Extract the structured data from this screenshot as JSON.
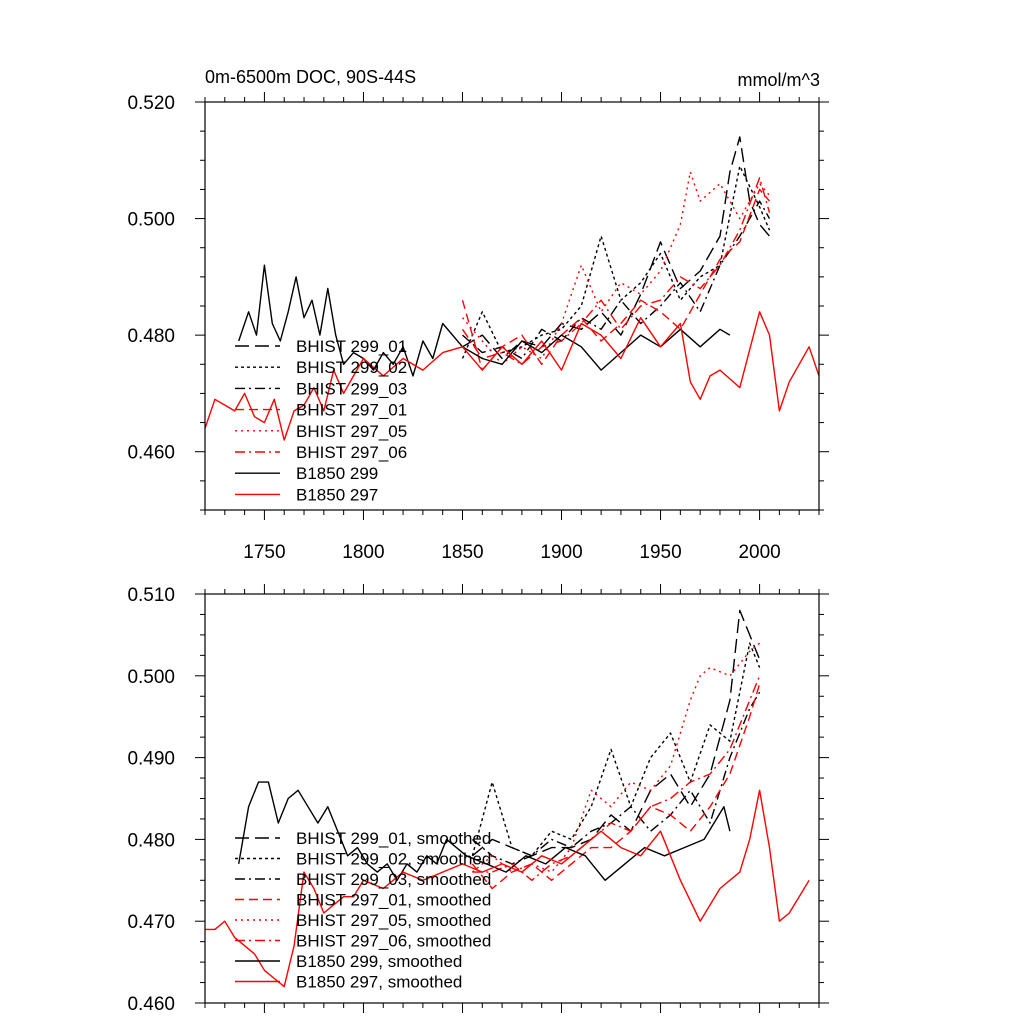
{
  "chart_data": [
    {
      "type": "line",
      "title": "0m-6500m DOC, 90S-44S",
      "units": "mmol/m^3",
      "xlim": [
        1720,
        2030
      ],
      "ylim": [
        0.45,
        0.52
      ],
      "xticks": [
        1750,
        1800,
        1850,
        1900,
        1950,
        2000
      ],
      "xtick_labels": [
        "1750",
        "1800",
        "1850",
        "1900",
        "1950",
        "2000"
      ],
      "yticks": [
        0.46,
        0.48,
        0.5,
        0.52
      ],
      "ytick_labels": [
        "0.460",
        "0.480",
        "0.500",
        "0.520"
      ],
      "grid": false,
      "legend_position": "left-middle",
      "series": [
        {
          "name": "BHIST 299_01",
          "color": "#000000",
          "dash": "long-dash",
          "x": [
            1850,
            1860,
            1870,
            1880,
            1890,
            1900,
            1910,
            1920,
            1930,
            1940,
            1950,
            1960,
            1970,
            1980,
            1985,
            1990,
            1995,
            2000,
            2005
          ],
          "y": [
            0.478,
            0.48,
            0.476,
            0.479,
            0.478,
            0.482,
            0.481,
            0.484,
            0.48,
            0.487,
            0.496,
            0.488,
            0.491,
            0.497,
            0.508,
            0.514,
            0.503,
            0.499,
            0.497
          ]
        },
        {
          "name": "BHIST 299_02",
          "color": "#000000",
          "dash": "dot",
          "x": [
            1850,
            1860,
            1870,
            1880,
            1890,
            1900,
            1910,
            1920,
            1930,
            1940,
            1950,
            1960,
            1970,
            1980,
            1990,
            2000,
            2005
          ],
          "y": [
            0.476,
            0.484,
            0.477,
            0.478,
            0.48,
            0.481,
            0.485,
            0.497,
            0.486,
            0.489,
            0.494,
            0.486,
            0.49,
            0.492,
            0.509,
            0.502,
            0.498
          ]
        },
        {
          "name": "BHIST 299_03",
          "color": "#000000",
          "dash": "dash-dot",
          "x": [
            1850,
            1860,
            1870,
            1880,
            1890,
            1900,
            1910,
            1920,
            1930,
            1940,
            1950,
            1960,
            1970,
            1980,
            1990,
            2000,
            2005
          ],
          "y": [
            0.48,
            0.477,
            0.478,
            0.476,
            0.481,
            0.479,
            0.483,
            0.481,
            0.486,
            0.482,
            0.485,
            0.489,
            0.484,
            0.492,
            0.497,
            0.503,
            0.5
          ]
        },
        {
          "name": "BHIST 297_01",
          "color": "#ff0000",
          "dash": "dash",
          "x": [
            1850,
            1860,
            1870,
            1880,
            1890,
            1900,
            1910,
            1920,
            1930,
            1940,
            1950,
            1960,
            1970,
            1980,
            1990,
            2000,
            2005
          ],
          "y": [
            0.486,
            0.474,
            0.478,
            0.48,
            0.475,
            0.48,
            0.483,
            0.479,
            0.482,
            0.486,
            0.484,
            0.481,
            0.487,
            0.493,
            0.496,
            0.505,
            0.503
          ]
        },
        {
          "name": "BHIST 297_05",
          "color": "#ff0000",
          "dash": "short-dot",
          "x": [
            1850,
            1860,
            1870,
            1880,
            1890,
            1900,
            1910,
            1920,
            1930,
            1940,
            1950,
            1960,
            1965,
            1970,
            1980,
            1990,
            2000,
            2005
          ],
          "y": [
            0.483,
            0.479,
            0.475,
            0.478,
            0.476,
            0.482,
            0.492,
            0.484,
            0.489,
            0.487,
            0.491,
            0.499,
            0.508,
            0.503,
            0.506,
            0.5,
            0.506,
            0.504
          ]
        },
        {
          "name": "BHIST 297_06",
          "color": "#ff0000",
          "dash": "dash-dot",
          "x": [
            1850,
            1860,
            1870,
            1880,
            1890,
            1900,
            1910,
            1920,
            1930,
            1940,
            1950,
            1960,
            1970,
            1980,
            1990,
            2000,
            2005
          ],
          "y": [
            0.481,
            0.476,
            0.477,
            0.475,
            0.478,
            0.479,
            0.482,
            0.486,
            0.481,
            0.485,
            0.486,
            0.49,
            0.488,
            0.492,
            0.498,
            0.507,
            0.501
          ]
        },
        {
          "name": "B1850 299",
          "color": "#000000",
          "dash": "solid",
          "x": [
            1737,
            1742,
            1746,
            1750,
            1754,
            1758,
            1762,
            1766,
            1770,
            1774,
            1778,
            1782,
            1786,
            1790,
            1795,
            1800,
            1805,
            1810,
            1815,
            1820,
            1825,
            1830,
            1835,
            1840,
            1850,
            1860,
            1870,
            1880,
            1890,
            1900,
            1910,
            1920,
            1930,
            1940,
            1950,
            1960,
            1970,
            1980,
            1985
          ],
          "y": [
            0.479,
            0.484,
            0.48,
            0.492,
            0.482,
            0.479,
            0.484,
            0.49,
            0.483,
            0.486,
            0.48,
            0.488,
            0.48,
            0.475,
            0.477,
            0.476,
            0.474,
            0.477,
            0.475,
            0.478,
            0.473,
            0.479,
            0.476,
            0.482,
            0.478,
            0.476,
            0.475,
            0.479,
            0.477,
            0.48,
            0.478,
            0.474,
            0.477,
            0.48,
            0.478,
            0.481,
            0.478,
            0.481,
            0.48
          ]
        },
        {
          "name": "B1850 297",
          "color": "#ff0000",
          "dash": "solid",
          "x": [
            1720,
            1725,
            1730,
            1735,
            1740,
            1745,
            1750,
            1755,
            1760,
            1765,
            1770,
            1775,
            1780,
            1785,
            1790,
            1795,
            1800,
            1810,
            1820,
            1830,
            1840,
            1850,
            1860,
            1870,
            1880,
            1890,
            1900,
            1910,
            1920,
            1930,
            1940,
            1950,
            1960,
            1965,
            1970,
            1975,
            1980,
            1990,
            2000,
            2005,
            2010,
            2015,
            2020,
            2025,
            2030
          ],
          "y": [
            0.464,
            0.469,
            0.468,
            0.467,
            0.47,
            0.466,
            0.465,
            0.469,
            0.462,
            0.467,
            0.468,
            0.471,
            0.467,
            0.474,
            0.47,
            0.473,
            0.476,
            0.473,
            0.476,
            0.474,
            0.477,
            0.478,
            0.474,
            0.478,
            0.475,
            0.479,
            0.474,
            0.482,
            0.48,
            0.476,
            0.483,
            0.478,
            0.482,
            0.472,
            0.469,
            0.473,
            0.474,
            0.471,
            0.484,
            0.48,
            0.467,
            0.472,
            0.475,
            0.478,
            0.473
          ]
        }
      ]
    },
    {
      "type": "line",
      "title": "",
      "units": "",
      "xlim": [
        1720,
        2030
      ],
      "ylim": [
        0.46,
        0.51
      ],
      "xticks": [
        1750,
        1800,
        1850,
        1900,
        1950,
        2000
      ],
      "xtick_labels": [],
      "yticks": [
        0.46,
        0.47,
        0.48,
        0.49,
        0.5,
        0.51
      ],
      "ytick_labels": [
        "0.460",
        "0.470",
        "0.480",
        "0.490",
        "0.500",
        "0.510"
      ],
      "grid": false,
      "legend_position": "bottom-left",
      "series": [
        {
          "name": "BHIST 299_01, smoothed",
          "color": "#000000",
          "dash": "long-dash",
          "x": [
            1855,
            1865,
            1875,
            1885,
            1895,
            1905,
            1915,
            1925,
            1935,
            1945,
            1955,
            1965,
            1975,
            1985,
            1990,
            1995,
            2000
          ],
          "y": [
            0.478,
            0.48,
            0.479,
            0.478,
            0.479,
            0.479,
            0.48,
            0.483,
            0.481,
            0.486,
            0.488,
            0.484,
            0.488,
            0.497,
            0.508,
            0.505,
            0.502
          ]
        },
        {
          "name": "BHIST 299_02, smoothed",
          "color": "#000000",
          "dash": "dot",
          "x": [
            1855,
            1865,
            1875,
            1885,
            1895,
            1905,
            1915,
            1925,
            1935,
            1945,
            1955,
            1965,
            1975,
            1985,
            1995,
            2000
          ],
          "y": [
            0.478,
            0.487,
            0.479,
            0.478,
            0.481,
            0.48,
            0.484,
            0.491,
            0.484,
            0.49,
            0.493,
            0.487,
            0.494,
            0.492,
            0.504,
            0.501
          ]
        },
        {
          "name": "BHIST 299_03, smoothed",
          "color": "#000000",
          "dash": "dash-dot",
          "x": [
            1855,
            1865,
            1875,
            1885,
            1895,
            1905,
            1915,
            1925,
            1935,
            1945,
            1955,
            1965,
            1975,
            1985,
            1995,
            2000
          ],
          "y": [
            0.48,
            0.478,
            0.477,
            0.478,
            0.48,
            0.479,
            0.481,
            0.482,
            0.484,
            0.481,
            0.483,
            0.486,
            0.482,
            0.49,
            0.496,
            0.498
          ]
        },
        {
          "name": "BHIST 297_01, smoothed",
          "color": "#ff0000",
          "dash": "dash",
          "x": [
            1855,
            1865,
            1875,
            1885,
            1895,
            1905,
            1915,
            1925,
            1935,
            1945,
            1955,
            1965,
            1975,
            1985,
            1995,
            2000
          ],
          "y": [
            0.477,
            0.474,
            0.476,
            0.477,
            0.475,
            0.477,
            0.479,
            0.479,
            0.481,
            0.484,
            0.483,
            0.481,
            0.484,
            0.488,
            0.495,
            0.499
          ]
        },
        {
          "name": "BHIST 297_05, smoothed",
          "color": "#ff0000",
          "dash": "short-dot",
          "x": [
            1855,
            1865,
            1875,
            1885,
            1895,
            1905,
            1915,
            1925,
            1935,
            1945,
            1955,
            1965,
            1970,
            1975,
            1985,
            1995,
            2000
          ],
          "y": [
            0.476,
            0.478,
            0.476,
            0.477,
            0.476,
            0.479,
            0.486,
            0.484,
            0.487,
            0.486,
            0.489,
            0.497,
            0.5,
            0.501,
            0.5,
            0.503,
            0.504
          ]
        },
        {
          "name": "BHIST 297_06, smoothed",
          "color": "#ff0000",
          "dash": "dash-dot",
          "x": [
            1855,
            1865,
            1875,
            1885,
            1895,
            1905,
            1915,
            1925,
            1935,
            1945,
            1955,
            1965,
            1975,
            1985,
            1995,
            2000
          ],
          "y": [
            0.476,
            0.476,
            0.477,
            0.475,
            0.477,
            0.478,
            0.48,
            0.482,
            0.481,
            0.484,
            0.485,
            0.487,
            0.488,
            0.491,
            0.497,
            0.5
          ]
        },
        {
          "name": "B1850 299, smoothed",
          "color": "#000000",
          "dash": "solid",
          "x": [
            1737,
            1742,
            1747,
            1752,
            1757,
            1762,
            1767,
            1772,
            1777,
            1782,
            1787,
            1792,
            1797,
            1802,
            1807,
            1812,
            1817,
            1822,
            1827,
            1832,
            1837,
            1842,
            1852,
            1862,
            1872,
            1882,
            1892,
            1902,
            1912,
            1922,
            1932,
            1942,
            1952,
            1962,
            1972,
            1982,
            1985
          ],
          "y": [
            0.477,
            0.484,
            0.487,
            0.487,
            0.482,
            0.485,
            0.486,
            0.484,
            0.482,
            0.484,
            0.481,
            0.478,
            0.479,
            0.477,
            0.476,
            0.477,
            0.475,
            0.477,
            0.476,
            0.478,
            0.477,
            0.48,
            0.478,
            0.477,
            0.476,
            0.478,
            0.477,
            0.479,
            0.478,
            0.475,
            0.477,
            0.479,
            0.478,
            0.479,
            0.48,
            0.484,
            0.481
          ]
        },
        {
          "name": "B1850 297, smoothed",
          "color": "#ff0000",
          "dash": "solid",
          "x": [
            1720,
            1725,
            1730,
            1735,
            1740,
            1745,
            1750,
            1755,
            1760,
            1765,
            1770,
            1775,
            1780,
            1785,
            1790,
            1795,
            1800,
            1810,
            1820,
            1830,
            1840,
            1850,
            1860,
            1870,
            1880,
            1890,
            1900,
            1910,
            1920,
            1930,
            1940,
            1950,
            1960,
            1970,
            1980,
            1990,
            1995,
            2000,
            2005,
            2010,
            2015,
            2020,
            2025
          ],
          "y": [
            0.469,
            0.469,
            0.47,
            0.468,
            0.467,
            0.466,
            0.464,
            0.463,
            0.462,
            0.467,
            0.476,
            0.474,
            0.471,
            0.472,
            0.473,
            0.473,
            0.475,
            0.474,
            0.476,
            0.475,
            0.476,
            0.477,
            0.476,
            0.477,
            0.476,
            0.478,
            0.477,
            0.479,
            0.481,
            0.479,
            0.478,
            0.481,
            0.475,
            0.47,
            0.474,
            0.476,
            0.48,
            0.486,
            0.479,
            0.47,
            0.471,
            0.473,
            0.475
          ]
        }
      ]
    }
  ]
}
